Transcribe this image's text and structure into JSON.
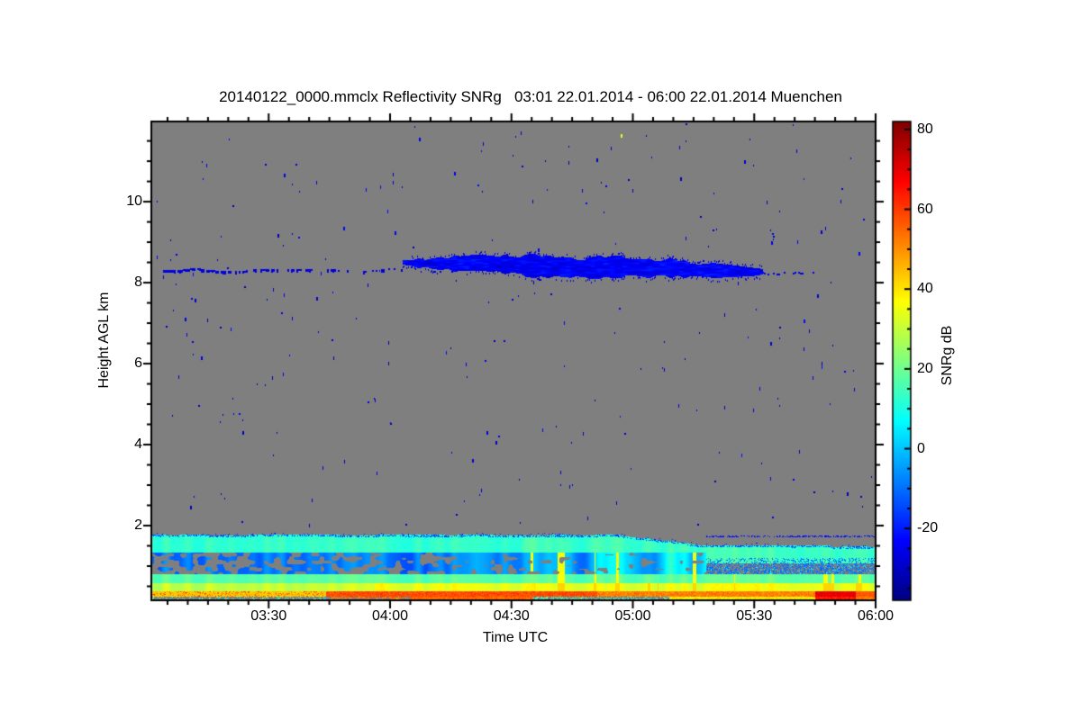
{
  "page": {
    "background": "#ffffff"
  },
  "chart_data": {
    "type": "heatmap",
    "title": "20140122_0000.mmclx Reflectivity SNRg   03:01 22.01.2014 - 06:00 22.01.2014 Muenchen",
    "instrument_file": "20140122_0000.mmclx",
    "quantity": "Reflectivity SNRg",
    "time_start": "03:01 22.01.2014",
    "time_end": "06:00 22.01.2014",
    "station": "Muenchen",
    "xlabel": "Time UTC",
    "ylabel": "Height AGL km",
    "x_axis": {
      "start": "03:01",
      "end": "06:00",
      "tick_labels": [
        "03:30",
        "04:00",
        "04:30",
        "05:00",
        "05:30",
        "06:00"
      ],
      "minor_every_min": 5
    },
    "y_axis": {
      "min_km": 0.155,
      "max_km": 11.98,
      "tick_values": [
        2,
        4,
        6,
        8,
        10
      ],
      "minor_step_km": 0.5
    },
    "colorbar": {
      "label": "SNRg dB",
      "tick_values": [
        80,
        60,
        40,
        20,
        0,
        -20
      ],
      "minor_step_db": 5,
      "vmin": -38,
      "vmax": 82,
      "colormap": "jet"
    },
    "no_signal_color": "#7f7f7f",
    "features": {
      "noise_speckles": {
        "count": 260,
        "snr_db_range": [
          -33,
          -24
        ]
      },
      "hot_pixel": {
        "time_min_after_start": 116,
        "height_km": 11.66,
        "snr_db": 34
      },
      "thin_cloud_line": {
        "t_range_min": [
          3,
          62
        ],
        "height_km": 8.32,
        "snr_db": -26,
        "density": 0.55
      },
      "cloud_layer": {
        "t_range_min": [
          62,
          151
        ],
        "tail_t_range_min": [
          151,
          164
        ],
        "height_center_start_km": 8.52,
        "height_center_end_km": 8.28,
        "max_half_thickness_km": 0.2,
        "snr_db_range": [
          -30,
          -18
        ]
      },
      "boundary_layer": {
        "top_km_early": 1.78,
        "top_km_late": 1.52,
        "step_start_min": 115,
        "step_end_min": 137,
        "bands": [
          {
            "name": "cyan_top",
            "h_range_km": [
              1.35,
              1.78
            ],
            "snr_db": 10
          },
          {
            "name": "dark_blue",
            "h_range_km": [
              0.82,
              1.35
            ],
            "snr_db": -8,
            "gray_gaps": true
          },
          {
            "name": "cyan_green",
            "h_range_km": [
              0.58,
              0.82
            ],
            "snr_db": 15
          },
          {
            "name": "green_yellow",
            "h_range_km": [
              0.38,
              0.58
            ],
            "snr_db": 28
          },
          {
            "name": "orange_red",
            "h_range_km": [
              0.25,
              0.38
            ],
            "snr_db": 52
          },
          {
            "name": "surface_strip",
            "h_range_km": [
              0.155,
              0.25
            ],
            "snr_db": 45,
            "gray_gaps": true
          }
        ],
        "red_blob_t_range_min": [
          164,
          174
        ],
        "red_blob_snr_db": 66
      }
    }
  }
}
